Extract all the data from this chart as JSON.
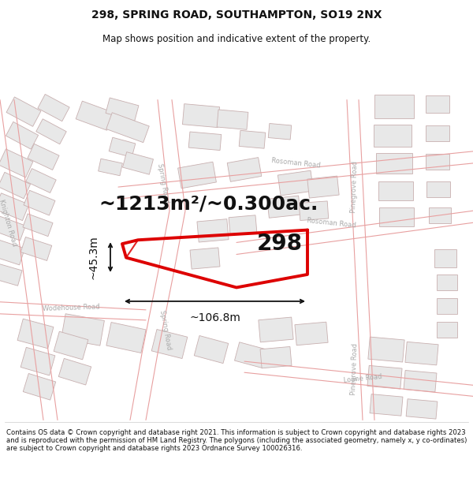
{
  "title_line1": "298, SPRING ROAD, SOUTHAMPTON, SO19 2NX",
  "title_line2": "Map shows position and indicative extent of the property.",
  "footer_text": "Contains OS data © Crown copyright and database right 2021. This information is subject to Crown copyright and database rights 2023 and is reproduced with the permission of HM Land Registry. The polygons (including the associated geometry, namely x, y co-ordinates) are subject to Crown copyright and database rights 2023 Ordnance Survey 100026316.",
  "area_label": "~1213m²/~0.300ac.",
  "number_label": "298",
  "dim_horiz": "~106.8m",
  "dim_vert": "~45.3m",
  "map_bg": "#ffffff",
  "road_outline": "#e8a0a0",
  "building_fill": "#e8e8e8",
  "building_edge": "#c8b0b0",
  "plot_line": "#dd0000",
  "text_dark": "#111111",
  "text_road": "#aaaaaa",
  "figsize": [
    6.0,
    6.25
  ],
  "dpi": 100,
  "title_fontsize": 10,
  "subtitle_fontsize": 8.5,
  "footer_fontsize": 6.1,
  "area_fontsize": 18,
  "num_fontsize": 20,
  "dim_fontsize": 10
}
